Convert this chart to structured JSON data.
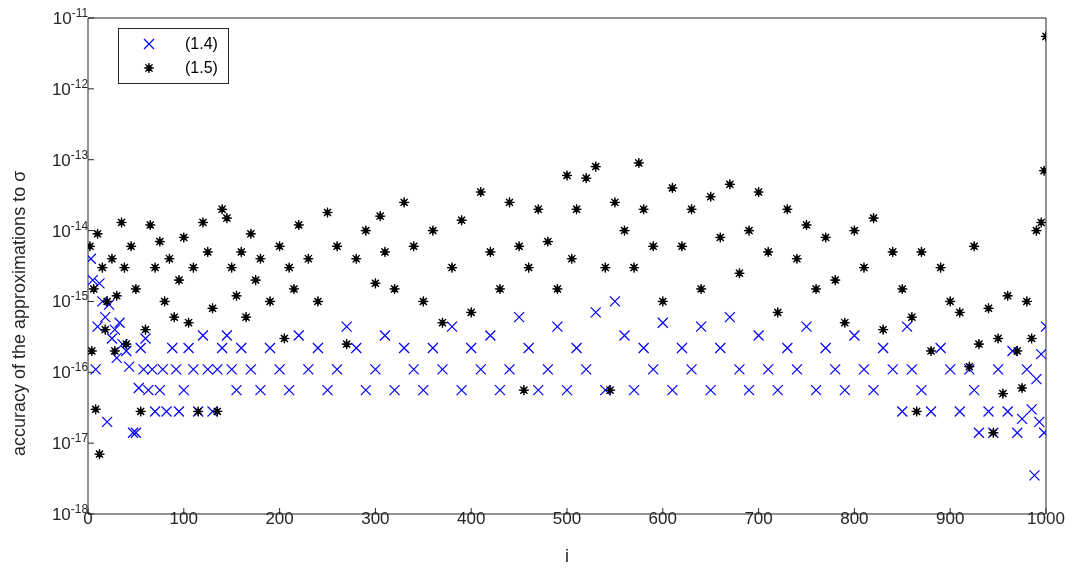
{
  "chart_data": {
    "type": "scatter",
    "xlabel": "i",
    "ylabel": "accuracy of the approximations to  σ",
    "log": "y",
    "grid": false,
    "legend": "top left",
    "xlim": [
      0,
      1000
    ],
    "xticks": [
      0,
      100,
      200,
      300,
      400,
      500,
      600,
      700,
      800,
      900,
      1000
    ],
    "ylim": [
      1e-18,
      1e-11
    ],
    "yticks": [
      {
        "value": 1e-18,
        "label": "10$^{-18}$"
      },
      {
        "value": 1e-17,
        "label": "10$^{-17}$"
      },
      {
        "value": 1e-16,
        "label": "10$^{-16}$"
      },
      {
        "value": 1e-15,
        "label": "10$^{-15}$"
      },
      {
        "value": 1e-14,
        "label": "10$^{-14}$"
      },
      {
        "value": 1e-13,
        "label": "10$^{-13}$"
      },
      {
        "value": 1e-12,
        "label": "10$^{-12}$"
      },
      {
        "value": 1e-11,
        "label": "10$^{-11}$"
      }
    ],
    "series": [
      {
        "name": "(1.4)",
        "color": "#0000ff",
        "marker": "cross",
        "x": [
          3,
          5,
          8,
          10,
          12,
          15,
          18,
          20,
          22,
          25,
          28,
          30,
          33,
          36,
          40,
          43,
          47,
          50,
          53,
          55,
          58,
          60,
          63,
          67,
          70,
          75,
          78,
          82,
          88,
          92,
          95,
          100,
          105,
          110,
          115,
          120,
          125,
          130,
          135,
          140,
          145,
          150,
          155,
          160,
          170,
          180,
          190,
          200,
          210,
          220,
          230,
          240,
          250,
          260,
          270,
          280,
          290,
          300,
          310,
          320,
          330,
          340,
          350,
          360,
          370,
          380,
          390,
          400,
          410,
          420,
          430,
          440,
          450,
          460,
          470,
          480,
          490,
          500,
          510,
          520,
          530,
          540,
          550,
          560,
          570,
          580,
          590,
          600,
          610,
          620,
          630,
          640,
          650,
          660,
          670,
          680,
          690,
          700,
          710,
          720,
          730,
          740,
          750,
          760,
          770,
          780,
          790,
          800,
          810,
          820,
          830,
          840,
          850,
          855,
          860,
          870,
          880,
          890,
          900,
          910,
          920,
          925,
          930,
          940,
          945,
          950,
          960,
          965,
          970,
          975,
          980,
          985,
          988,
          990,
          993,
          995,
          998,
          1000
        ],
        "values": [
          4e-15,
          2e-15,
          1.1e-16,
          4.4e-16,
          1.8e-15,
          1e-15,
          6e-16,
          2e-17,
          9e-16,
          3e-16,
          4e-16,
          1.6e-16,
          5e-16,
          2.5e-16,
          2e-16,
          1.2e-16,
          1.4e-17,
          1.4e-17,
          6e-17,
          2.2e-16,
          1.1e-16,
          3e-16,
          5.6e-17,
          1.1e-16,
          2.8e-17,
          5.6e-17,
          1.1e-16,
          2.8e-17,
          2.2e-16,
          1.1e-16,
          2.8e-17,
          5.6e-17,
          2.2e-16,
          1.1e-16,
          2.8e-17,
          3.3e-16,
          1.1e-16,
          2.8e-17,
          1.1e-16,
          2.2e-16,
          3.3e-16,
          1.1e-16,
          5.6e-17,
          2.2e-16,
          1.1e-16,
          5.6e-17,
          2.2e-16,
          1.1e-16,
          5.6e-17,
          3.3e-16,
          1.1e-16,
          2.2e-16,
          5.6e-17,
          1.1e-16,
          4.4e-16,
          2.2e-16,
          5.6e-17,
          1.1e-16,
          3.3e-16,
          5.6e-17,
          2.2e-16,
          1.1e-16,
          5.6e-17,
          2.2e-16,
          1.1e-16,
          4.4e-16,
          5.6e-17,
          2.2e-16,
          1.1e-16,
          3.3e-16,
          5.6e-17,
          1.1e-16,
          6e-16,
          2.2e-16,
          5.6e-17,
          1.1e-16,
          4.4e-16,
          5.6e-17,
          2.2e-16,
          1.1e-16,
          7e-16,
          5.6e-17,
          1e-15,
          3.3e-16,
          5.6e-17,
          2.2e-16,
          1.1e-16,
          5e-16,
          5.6e-17,
          2.2e-16,
          1.1e-16,
          4.4e-16,
          5.6e-17,
          2.2e-16,
          6e-16,
          1.1e-16,
          5.6e-17,
          3.3e-16,
          1.1e-16,
          5.6e-17,
          2.2e-16,
          1.1e-16,
          4.4e-16,
          5.6e-17,
          2.2e-16,
          1.1e-16,
          5.6e-17,
          3.3e-16,
          1.1e-16,
          5.6e-17,
          2.2e-16,
          1.1e-16,
          2.8e-17,
          4.4e-16,
          1.1e-16,
          5.6e-17,
          2.8e-17,
          2.2e-16,
          1.1e-16,
          2.8e-17,
          1.1e-16,
          5.6e-17,
          1.4e-17,
          2.8e-17,
          1.4e-17,
          1.1e-16,
          2.8e-17,
          2e-16,
          1.4e-17,
          2.2e-17,
          1.1e-16,
          3e-17,
          3.5e-18,
          8e-17,
          2e-17,
          1.8e-16,
          1.4e-17,
          4.4e-16
        ]
      },
      {
        "name": "(1.5)",
        "color": "#000000",
        "marker": "star",
        "x": [
          2,
          4,
          6,
          8,
          10,
          12,
          15,
          18,
          20,
          25,
          28,
          30,
          35,
          38,
          40,
          45,
          50,
          55,
          60,
          65,
          70,
          75,
          80,
          85,
          90,
          95,
          100,
          105,
          110,
          115,
          120,
          125,
          130,
          135,
          140,
          145,
          150,
          155,
          160,
          165,
          170,
          175,
          180,
          190,
          200,
          205,
          210,
          215,
          220,
          230,
          240,
          250,
          260,
          270,
          280,
          290,
          300,
          305,
          310,
          320,
          330,
          340,
          350,
          360,
          370,
          380,
          390,
          400,
          410,
          420,
          430,
          440,
          450,
          455,
          460,
          470,
          480,
          490,
          500,
          505,
          510,
          520,
          530,
          540,
          545,
          550,
          560,
          570,
          575,
          580,
          590,
          600,
          610,
          620,
          630,
          640,
          650,
          660,
          670,
          680,
          690,
          700,
          710,
          720,
          730,
          740,
          750,
          760,
          770,
          780,
          790,
          800,
          810,
          820,
          830,
          840,
          850,
          860,
          865,
          870,
          880,
          890,
          900,
          910,
          920,
          925,
          930,
          940,
          945,
          950,
          955,
          960,
          970,
          975,
          980,
          985,
          990,
          995,
          998,
          1000
        ],
        "values": [
          6e-15,
          2e-16,
          1.5e-15,
          3e-17,
          9e-15,
          7e-18,
          3e-15,
          4e-16,
          1e-15,
          4e-15,
          2e-16,
          1.2e-15,
          1.3e-14,
          3e-15,
          2.5e-16,
          6e-15,
          1.5e-15,
          2.8e-17,
          4e-16,
          1.2e-14,
          3e-15,
          7e-15,
          1e-15,
          4e-15,
          6e-16,
          2e-15,
          8e-15,
          5e-16,
          3e-15,
          2.8e-17,
          1.3e-14,
          5e-15,
          8e-16,
          2.8e-17,
          2e-14,
          1.5e-14,
          3e-15,
          1.2e-15,
          5e-15,
          6e-16,
          9e-15,
          2e-15,
          4e-15,
          1e-15,
          6e-15,
          3e-16,
          3e-15,
          1.5e-15,
          1.2e-14,
          4e-15,
          1e-15,
          1.8e-14,
          6e-15,
          2.5e-16,
          4e-15,
          1e-14,
          1.8e-15,
          1.6e-14,
          5e-15,
          1.5e-15,
          2.5e-14,
          6e-15,
          1e-15,
          1e-14,
          5e-16,
          3e-15,
          1.4e-14,
          7e-16,
          3.5e-14,
          5e-15,
          1.5e-15,
          2.5e-14,
          6e-15,
          5.6e-17,
          3e-15,
          2e-14,
          7e-15,
          1.5e-15,
          6e-14,
          4e-15,
          2e-14,
          5.5e-14,
          8e-14,
          3e-15,
          5.6e-17,
          2.5e-14,
          1e-14,
          3e-15,
          9e-14,
          2e-14,
          6e-15,
          1e-15,
          4e-14,
          6e-15,
          2e-14,
          1.5e-15,
          3e-14,
          8e-15,
          4.5e-14,
          2.5e-15,
          1e-14,
          3.5e-14,
          5e-15,
          7e-16,
          2e-14,
          4e-15,
          1.2e-14,
          1.5e-15,
          8e-15,
          2e-15,
          5e-16,
          1e-14,
          3e-15,
          1.5e-14,
          4e-16,
          5e-15,
          1.5e-15,
          6e-16,
          2.8e-17,
          5e-15,
          2e-16,
          3e-15,
          1e-15,
          7e-16,
          1.2e-16,
          6e-15,
          2.5e-16,
          8e-16,
          1.4e-17,
          3e-16,
          5e-17,
          1.2e-15,
          2e-16,
          6e-17,
          1e-15,
          3e-16,
          1e-14,
          1.3e-14,
          7e-14,
          5.5e-12
        ]
      }
    ]
  }
}
